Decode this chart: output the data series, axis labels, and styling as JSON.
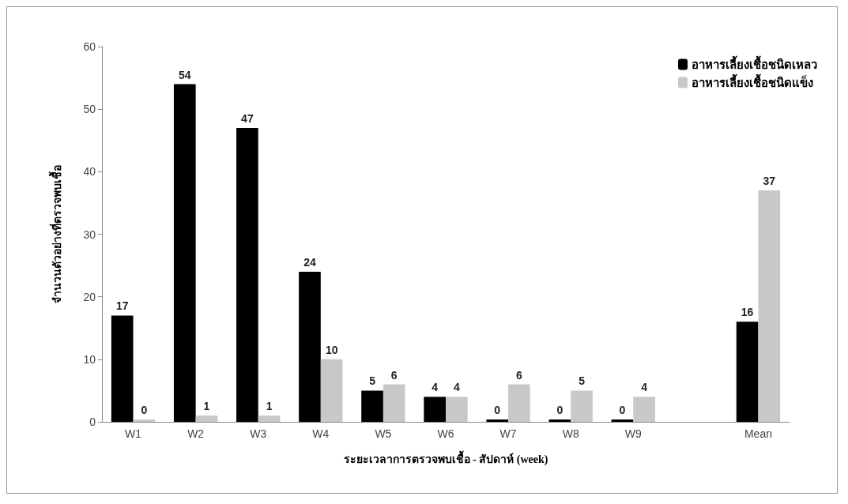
{
  "chart_data": {
    "type": "bar",
    "xlabel": "ระยะเวลาการตรวจพบเชื้อ - สัปดาห์ (week)",
    "ylabel": "จำนวนตัวอย่างที่ตรวจพบเชื้อ",
    "categories": [
      "W1",
      "W2",
      "W3",
      "W4",
      "W5",
      "W6",
      "W7",
      "W8",
      "W9",
      null,
      "Mean"
    ],
    "series": [
      {
        "name": "อาหารเลี้ยงเชื้อชนิดเหลว",
        "color": "#000000",
        "values": [
          17,
          54,
          47,
          24,
          5,
          4,
          0,
          0,
          0,
          null,
          16
        ]
      },
      {
        "name": "อาหารเลี้ยงเชื้อชนิดแข็ง",
        "color": "#c8c8c8",
        "values": [
          0,
          1,
          1,
          10,
          6,
          4,
          6,
          5,
          4,
          null,
          37
        ]
      }
    ],
    "ylim": [
      0,
      60
    ],
    "yticks": [
      0,
      10,
      20,
      30,
      40,
      50,
      60
    ],
    "grid": false,
    "legend": "top right",
    "data_labels": true
  }
}
